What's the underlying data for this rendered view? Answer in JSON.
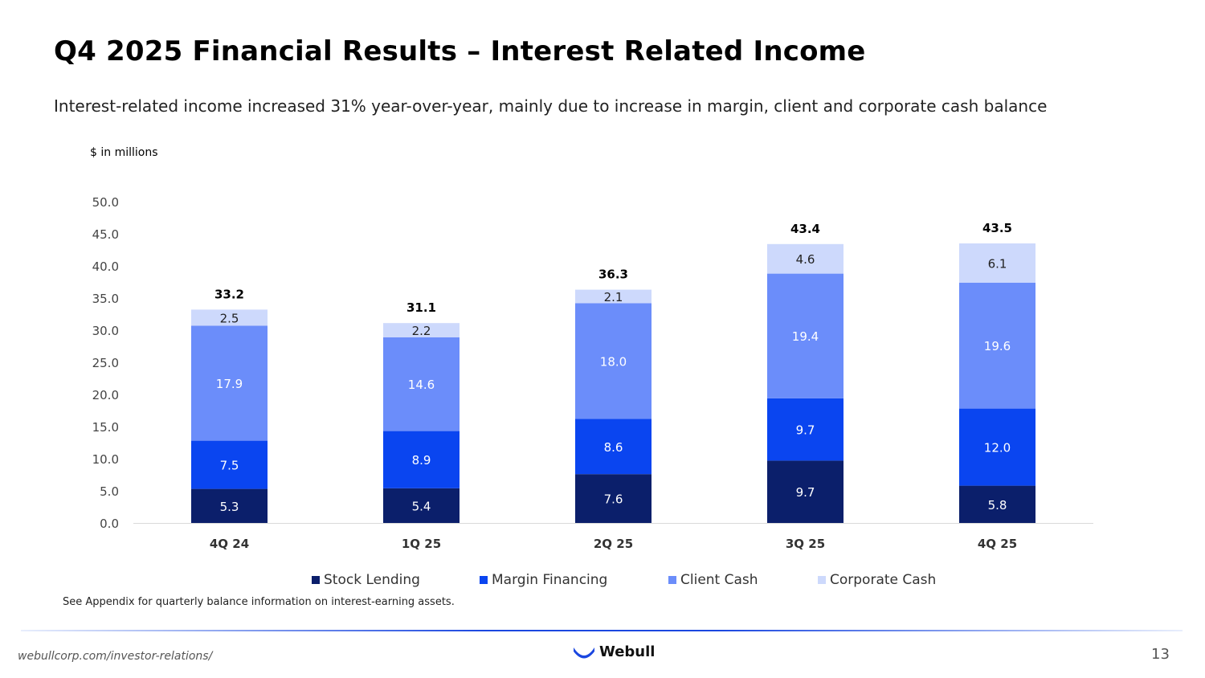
{
  "page": {
    "title": "Q4 2025 Financial Results – Interest Related Income",
    "subtitle": "Interest-related income increased 31% year-over-year, mainly due to increase in margin, client and corporate cash balance",
    "units": "$ in millions",
    "footnote": "See Appendix for quarterly balance information on interest-earning assets.",
    "url": "webullcorp.com/investor-relations/",
    "logo_text": "Webull",
    "page_number": "13"
  },
  "colors": {
    "stock_lending": "#0b1f6b",
    "margin_financing": "#0a45f0",
    "client_cash": "#6b8dfa",
    "corporate_cash": "#cdd9fc"
  },
  "chart_data": {
    "type": "bar",
    "stacked": true,
    "categories": [
      "4Q 24",
      "1Q 25",
      "2Q 25",
      "3Q 25",
      "4Q 25"
    ],
    "series": [
      {
        "name": "Stock Lending",
        "values": [
          5.3,
          5.4,
          7.6,
          9.7,
          5.8
        ],
        "color": "#0b1f6b"
      },
      {
        "name": "Margin Financing",
        "values": [
          7.5,
          8.9,
          8.6,
          9.7,
          12.0
        ],
        "color": "#0a45f0"
      },
      {
        "name": "Client Cash",
        "values": [
          17.9,
          14.6,
          18.0,
          19.4,
          19.6
        ],
        "color": "#6b8dfa"
      },
      {
        "name": "Corporate Cash",
        "values": [
          2.5,
          2.2,
          2.1,
          4.6,
          6.1
        ],
        "color": "#cdd9fc"
      }
    ],
    "totals": [
      "33.2",
      "31.1",
      "36.3",
      "43.4",
      "43.5"
    ],
    "ylim": [
      0,
      50
    ],
    "yticks": [
      "0.0",
      "5.0",
      "10.0",
      "15.0",
      "20.0",
      "25.0",
      "30.0",
      "35.0",
      "40.0",
      "45.0",
      "50.0"
    ],
    "grid": false,
    "legend": "bottom"
  }
}
